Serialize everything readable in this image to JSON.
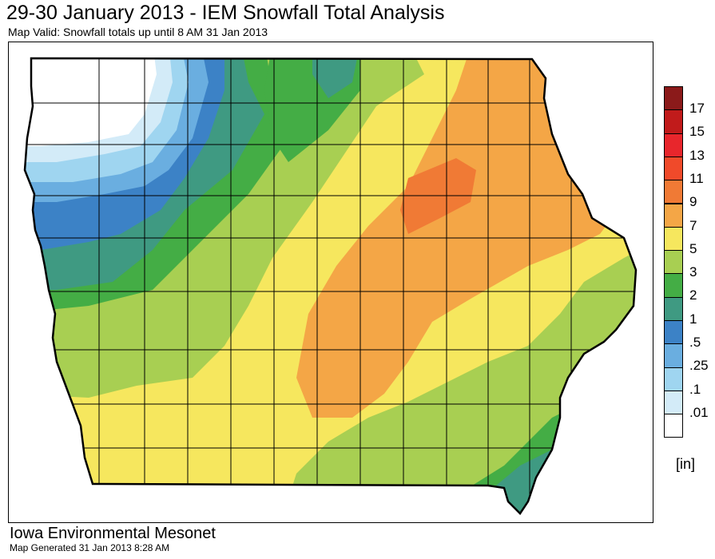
{
  "header": {
    "title": "29-30 January 2013 - IEM Snowfall Total Analysis",
    "subtitle": "Map Valid: Snowfall totals up until 8 AM 31 Jan 2013"
  },
  "legend": {
    "unit": "[in]",
    "entries": [
      {
        "label": "17",
        "color": "#8b1a1a"
      },
      {
        "label": "15",
        "color": "#c11b1b"
      },
      {
        "label": "13",
        "color": "#e8262c"
      },
      {
        "label": "11",
        "color": "#f04a2a"
      },
      {
        "label": "9",
        "color": "#f07a35"
      },
      {
        "label": "7",
        "color": "#f4a646"
      },
      {
        "label": "5",
        "color": "#f6e75e"
      },
      {
        "label": "3",
        "color": "#a8cf52"
      },
      {
        "label": "2",
        "color": "#44ad45"
      },
      {
        "label": "1",
        "color": "#3f9a82"
      },
      {
        "label": ".5",
        "color": "#3c82c6"
      },
      {
        "label": ".25",
        "color": "#6aaee0"
      },
      {
        "label": ".1",
        "color": "#9fd5f0"
      },
      {
        "label": ".01",
        "color": "#d3ebf8"
      },
      {
        "label": "",
        "color": "#ffffff"
      }
    ]
  },
  "footer": {
    "organization": "Iowa Environmental Mesonet",
    "generated": "Map Generated 31 Jan 2013 8:28 AM"
  }
}
